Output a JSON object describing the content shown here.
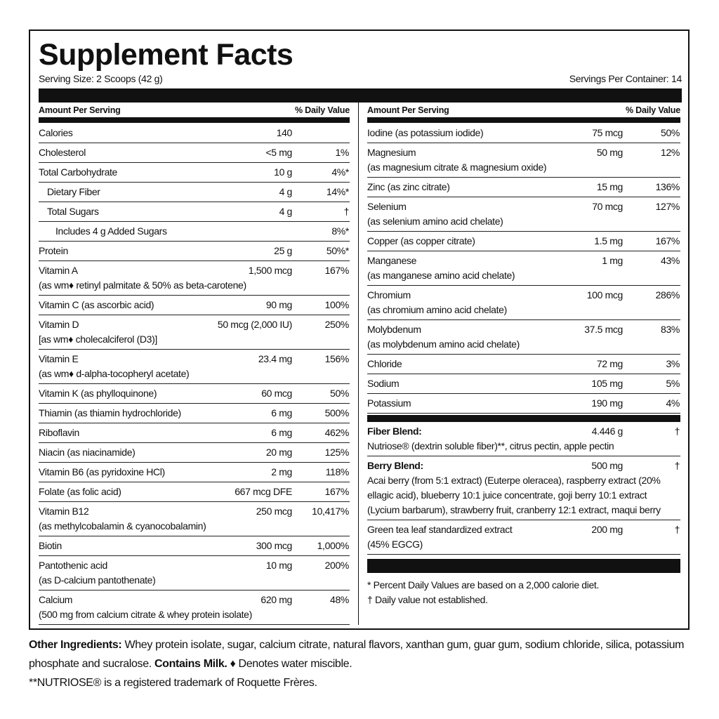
{
  "title": "Supplement Facts",
  "serving_size": "Serving Size: 2 Scoops (42 g)",
  "servings_per_container": "Servings Per Container: 14",
  "columns": [
    {
      "header": {
        "amount": "Amount Per Serving",
        "dv": "% Daily Value"
      },
      "rows": [
        {
          "name": "Calories",
          "amount": "140"
        },
        {
          "name": "Cholesterol",
          "amount": "<5 mg",
          "dv": "1%"
        },
        {
          "name": "Total Carbohydrate",
          "amount": "10 g",
          "dv": "4%*"
        },
        {
          "name": "Dietary Fiber",
          "amount": "4 g",
          "dv": "14%*",
          "indent": 1
        },
        {
          "name": "Total Sugars",
          "amount": "4 g",
          "dv": "†",
          "indent": 1
        },
        {
          "name": "Includes 4 g Added Sugars",
          "dv": "8%*",
          "indent": 2
        },
        {
          "name": "Protein",
          "amount": "25 g",
          "dv": "50%*"
        },
        {
          "name": "Vitamin A",
          "note": "(as wm♦ retinyl palmitate & 50% as beta-carotene)",
          "amount": "1,500 mcg",
          "dv": "167%"
        },
        {
          "name": "Vitamin C (as ascorbic acid)",
          "amount": "90 mg",
          "dv": "100%"
        },
        {
          "name": "Vitamin D",
          "note": "[as wm♦ cholecalciferol (D3)]",
          "amount": "50 mcg (2,000 IU)",
          "dv": "250%"
        },
        {
          "name": "Vitamin E",
          "note": "(as wm♦ d-alpha-tocopheryl acetate)",
          "amount": "23.4 mg",
          "dv": "156%"
        },
        {
          "name": "Vitamin K (as phylloquinone)",
          "amount": "60 mcg",
          "dv": "50%"
        },
        {
          "name": "Thiamin (as thiamin hydrochloride)",
          "amount": "6 mg",
          "dv": "500%"
        },
        {
          "name": "Riboflavin",
          "amount": "6 mg",
          "dv": "462%"
        },
        {
          "name": "Niacin (as niacinamide)",
          "amount": "20 mg",
          "dv": "125%"
        },
        {
          "name": "Vitamin B6 (as pyridoxine HCl)",
          "amount": "2 mg",
          "dv": "118%"
        },
        {
          "name": "Folate (as folic acid)",
          "amount": "667 mcg DFE",
          "dv": "167%"
        },
        {
          "name": "Vitamin B12",
          "note": "(as methylcobalamin & cyanocobalamin)",
          "amount": "250 mcg",
          "dv": "10,417%"
        },
        {
          "name": "Biotin",
          "amount": "300 mcg",
          "dv": "1,000%"
        },
        {
          "name": "Pantothenic acid",
          "note": "(as D-calcium pantothenate)",
          "amount": "10 mg",
          "dv": "200%"
        },
        {
          "name": "Calcium",
          "note": "(500 mg from calcium citrate & whey protein isolate)",
          "amount": "620 mg",
          "dv": "48%"
        }
      ]
    },
    {
      "header": {
        "amount": "Amount Per Serving",
        "dv": "% Daily Value"
      },
      "rows": [
        {
          "name": "Iodine (as potassium iodide)",
          "amount": "75 mcg",
          "dv": "50%"
        },
        {
          "name": "Magnesium",
          "note": "(as magnesium citrate & magnesium oxide)",
          "amount": "50 mg",
          "dv": "12%"
        },
        {
          "name": "Zinc (as zinc citrate)",
          "amount": "15 mg",
          "dv": "136%"
        },
        {
          "name": "Selenium",
          "note": "(as selenium amino acid chelate)",
          "amount": "70 mcg",
          "dv": "127%"
        },
        {
          "name": "Copper (as copper citrate)",
          "amount": "1.5 mg",
          "dv": "167%"
        },
        {
          "name": "Manganese",
          "note": "(as manganese amino acid chelate)",
          "amount": "1 mg",
          "dv": "43%"
        },
        {
          "name": "Chromium",
          "note": "(as chromium amino acid chelate)",
          "amount": "100 mcg",
          "dv": "286%"
        },
        {
          "name": "Molybdenum",
          "note": "(as molybdenum amino acid chelate)",
          "amount": "37.5 mcg",
          "dv": "83%"
        },
        {
          "name": "Chloride",
          "amount": "72 mg",
          "dv": "3%"
        },
        {
          "name": "Sodium",
          "amount": "105 mg",
          "dv": "5%"
        },
        {
          "name": "Potassium",
          "amount": "190 mg",
          "dv": "4%"
        }
      ],
      "blends": [
        {
          "name": "Fiber Blend:",
          "bold": true,
          "amount": "4.446 g",
          "dv": "†",
          "note": "Nutriose® (dextrin soluble fiber)**, citrus pectin, apple pectin"
        },
        {
          "name": "Berry Blend:",
          "bold": true,
          "amount": "500 mg",
          "dv": "†",
          "note": "Acai berry (from 5:1 extract) (Euterpe oleracea), raspberry extract (20% ellagic acid), blueberry 10:1 juice concentrate, goji berry 10:1 extract (Lycium barbarum), strawberry fruit, cranberry 12:1 extract, maqui berry"
        },
        {
          "name": "Green tea leaf standardized extract",
          "amount": "200 mg",
          "dv": "†",
          "note": "(45% EGCG)"
        }
      ],
      "footnotes": [
        "* Percent Daily Values are based on a 2,000 calorie diet.",
        "† Daily value not established."
      ]
    }
  ],
  "other_ingredients": {
    "label": "Other Ingredients:",
    "text": "Whey protein isolate, sugar, calcium citrate, natural flavors, xanthan gum, guar gum, sodium chloride, silica, potassium phosphate and sucralose.",
    "allergen": "Contains Milk.",
    "legend": "♦ Denotes water miscible."
  },
  "trademark": "**NUTRIOSE® is a registered trademark of Roquette Frères."
}
